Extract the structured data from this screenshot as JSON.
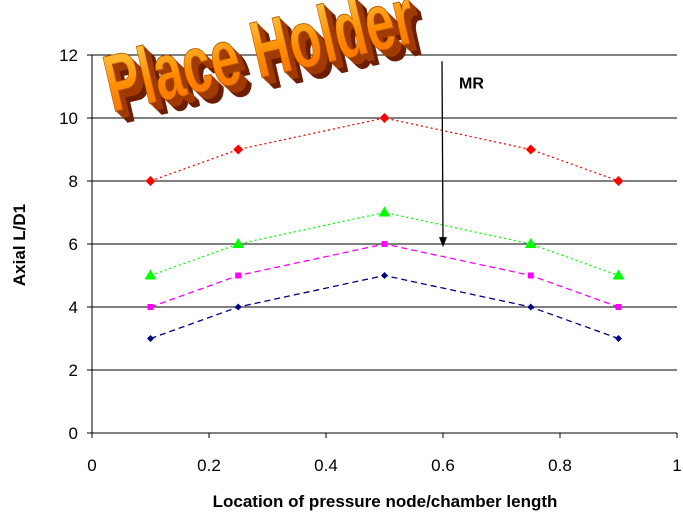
{
  "chart_data": {
    "type": "line",
    "title": "",
    "xlabel": "Location of pressure node/chamber length",
    "ylabel": "Axial L/D1",
    "xlim": [
      0,
      1
    ],
    "ylim": [
      0,
      12
    ],
    "x_ticks": [
      "0",
      "0.2",
      "0.4",
      "0.6",
      "0.8",
      "1"
    ],
    "y_ticks": [
      "0",
      "2",
      "4",
      "6",
      "8",
      "10",
      "12"
    ],
    "grid": "horizontal",
    "legend": "none",
    "x": [
      0.1,
      0.25,
      0.5,
      0.75,
      0.9
    ],
    "series": [
      {
        "values": [
          8,
          9,
          10,
          9,
          8
        ],
        "color": "#ff0000",
        "marker": "diamond",
        "line": "dotted"
      },
      {
        "values": [
          5,
          6,
          7,
          6,
          5
        ],
        "color": "#00ff00",
        "marker": "triangle",
        "line": "dotted"
      },
      {
        "values": [
          4,
          5,
          6,
          5,
          4
        ],
        "color": "#ff00ff",
        "marker": "square",
        "line": "dashed"
      },
      {
        "values": [
          3,
          4,
          5,
          4,
          3
        ],
        "color": "#000080",
        "marker": "diamond",
        "line": "dashed"
      }
    ],
    "annotations": [
      {
        "text": "MR",
        "arrow_x": 0.6,
        "arrow_from_y": 11.8,
        "arrow_to_y": 5.9
      }
    ],
    "wordart": {
      "text": "Place Holder"
    }
  }
}
